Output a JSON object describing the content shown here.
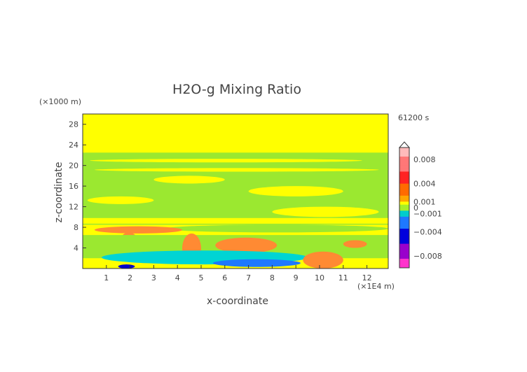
{
  "chart_data": {
    "type": "heatmap",
    "title": "H2O-g Mixing Ratio",
    "xlabel": "x-coordinate",
    "ylabel": "z-coordinate",
    "x_unit": "(×1E4 m)",
    "y_unit": "(×1000 m)",
    "time_label": "61200 s",
    "xlim": [
      0,
      12.9
    ],
    "ylim": [
      0,
      30
    ],
    "x_ticks": [
      "1",
      "2",
      "3",
      "4",
      "5",
      "6",
      "7",
      "8",
      "9",
      "10",
      "11",
      "12"
    ],
    "y_ticks": [
      "4",
      "8",
      "12",
      "16",
      "20",
      "24",
      "28"
    ],
    "colorbar": {
      "labels": [
        "0.008",
        "0.004",
        "0.001",
        "0",
        "−0.001",
        "−0.004",
        "−0.008"
      ],
      "label_values": [
        0.008,
        0.004,
        0.001,
        0,
        -0.001,
        -0.004,
        -0.008
      ],
      "range": [
        -0.01,
        0.01
      ]
    },
    "background_value": 0.0005,
    "regions": [
      {
        "name": "upper-dry-band",
        "value": 0.0005,
        "x": [
          0,
          12.9
        ],
        "z": [
          22.5,
          30
        ]
      },
      {
        "name": "mid-band",
        "value": -0.0005,
        "x": [
          0,
          12.9
        ],
        "z": [
          8.5,
          22.5
        ]
      },
      {
        "name": "streak-21",
        "value": 0.0005,
        "x": [
          0.3,
          11.8
        ],
        "z": [
          20.6,
          21.3
        ]
      },
      {
        "name": "streak-19",
        "value": 0.0005,
        "x": [
          0.5,
          12.5
        ],
        "z": [
          18.8,
          19.5
        ]
      },
      {
        "name": "patch-17",
        "value": 0.0005,
        "x": [
          3.0,
          6.0
        ],
        "z": [
          16.5,
          18.0
        ]
      },
      {
        "name": "patch-15",
        "value": 0.0005,
        "x": [
          7.0,
          11.0
        ],
        "z": [
          14.0,
          16.0
        ]
      },
      {
        "name": "patch-13",
        "value": 0.0005,
        "x": [
          0.2,
          3.0
        ],
        "z": [
          12.5,
          14.0
        ]
      },
      {
        "name": "patch-10",
        "value": 0.0005,
        "x": [
          8.0,
          12.5
        ],
        "z": [
          10.0,
          12.0
        ]
      },
      {
        "name": "band-9",
        "value": 0.0005,
        "x": [
          0,
          12.9
        ],
        "z": [
          8.7,
          9.8
        ]
      },
      {
        "name": "band-8",
        "value": -0.0005,
        "x": [
          3.5,
          12.9
        ],
        "z": [
          7.0,
          8.5
        ]
      },
      {
        "name": "moist-tongue",
        "value": 0.002,
        "x": [
          0.5,
          4.2
        ],
        "z": [
          6.8,
          8.2
        ]
      },
      {
        "name": "moist-stem-2",
        "value": 0.002,
        "x": [
          1.6,
          2.3
        ],
        "z": [
          4.0,
          7.0
        ]
      },
      {
        "name": "low-band",
        "value": -0.0005,
        "x": [
          0,
          12.9
        ],
        "z": [
          2.0,
          6.5
        ]
      },
      {
        "name": "plume-4.5",
        "value": 0.002,
        "x": [
          4.2,
          5.0
        ],
        "z": [
          1.0,
          6.8
        ]
      },
      {
        "name": "tongue-6.5",
        "value": 0.002,
        "x": [
          5.6,
          8.2
        ],
        "z": [
          3.0,
          6.0
        ]
      },
      {
        "name": "blob-11.5",
        "value": 0.002,
        "x": [
          11.0,
          12.0
        ],
        "z": [
          4.0,
          5.5
        ]
      },
      {
        "name": "cyan-zone",
        "value": -0.001,
        "x": [
          0.8,
          9.5
        ],
        "z": [
          0.8,
          3.5
        ]
      },
      {
        "name": "blue-zone",
        "value": -0.003,
        "x": [
          5.5,
          9.2
        ],
        "z": [
          0.3,
          1.8
        ]
      },
      {
        "name": "surface-moist-9.8",
        "value": 0.002,
        "x": [
          9.3,
          11.0
        ],
        "z": [
          0,
          3.3
        ]
      },
      {
        "name": "surface-blue-2",
        "value": -0.005,
        "x": [
          1.5,
          2.2
        ],
        "z": [
          0,
          0.8
        ]
      }
    ]
  }
}
